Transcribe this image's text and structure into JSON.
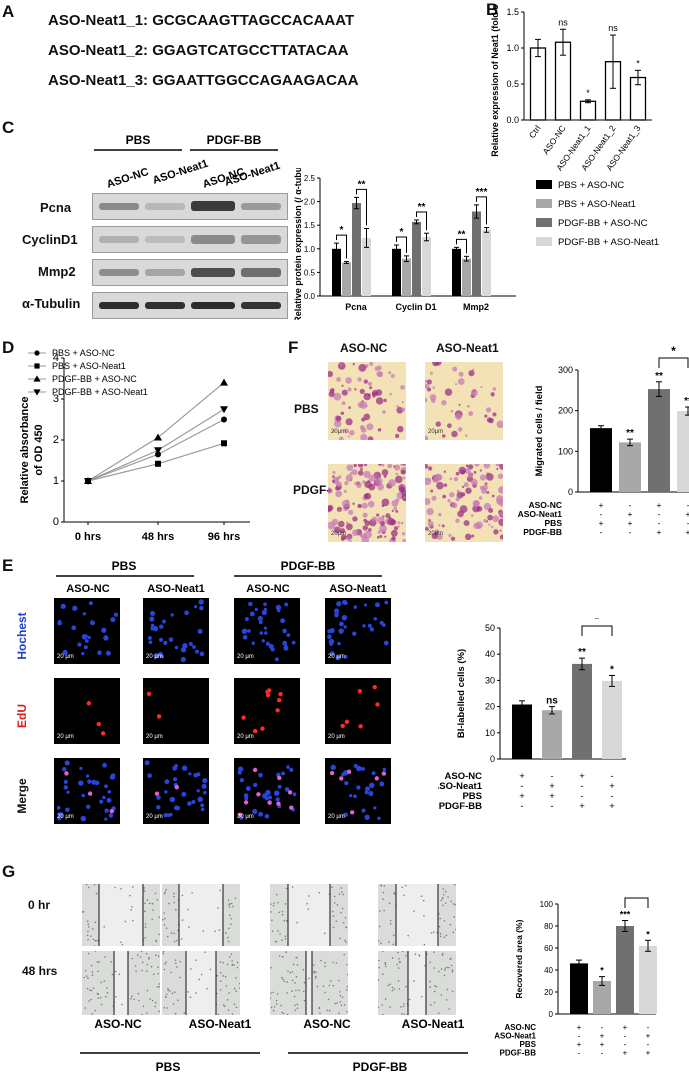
{
  "panels": {
    "a": "A",
    "b": "B",
    "c": "C",
    "d": "D",
    "e": "E",
    "f": "F",
    "g": "G"
  },
  "panelA": {
    "sequences": [
      "ASO-Neat1_1: GCGCAAGTTAGCCACAAAT",
      "ASO-Neat1_2: GGAGTCATGCCTTATACAA",
      "ASO-Neat1_3: GGAATTGGCCAGAAGACAA"
    ]
  },
  "panelC": {
    "group_labels": [
      "PBS",
      "PDGF-BB"
    ],
    "lane_labels": [
      "ASO-NC",
      "ASO-Neat1",
      "ASO-NC",
      "ASO-Neat1"
    ],
    "blot_labels": [
      "Pcna",
      "CyclinD1",
      "Mmp2",
      "α-Tubulin"
    ]
  },
  "panelE": {
    "group_labels": [
      "PBS",
      "PDGF-BB"
    ],
    "col_labels": [
      "ASO-NC",
      "ASO-Neat1",
      "ASO-NC",
      "ASO-Neat1"
    ],
    "row_labels": [
      "Hochest",
      "EdU",
      "Merge"
    ],
    "row_colors": [
      "#1f3fd0",
      "#e01818",
      "#111111"
    ],
    "scalebar": "20 μm"
  },
  "panelF": {
    "col_labels": [
      "ASO-NC",
      "ASO-Neat1"
    ],
    "row_labels": [
      "PBS",
      "PDGF-BB"
    ],
    "scalebar": "20μm"
  },
  "panelG": {
    "row_labels": [
      "0 hr",
      "48 hrs"
    ],
    "col_labels": [
      "ASO-NC",
      "ASO-Neat1",
      "ASO-NC",
      "ASO-Neat1"
    ],
    "group_labels": [
      "PBS",
      "PDGF-BB"
    ]
  },
  "chart_data": [
    {
      "id": "B",
      "type": "bar",
      "categories": [
        "Ctrl",
        "ASO-NC",
        "ASO-Neat1_1",
        "ASO-Neat1_2",
        "ASO-Neat1_3"
      ],
      "values": [
        1.0,
        1.08,
        0.26,
        0.81,
        0.59
      ],
      "errors": [
        0.12,
        0.18,
        0.02,
        0.37,
        0.1
      ],
      "significance": [
        "",
        "ns",
        "*",
        "ns",
        "*"
      ],
      "ylabel": "Relative expression of Neat1 (fold change)",
      "ylim": [
        0,
        1.5
      ],
      "yticks": [
        "0.0",
        "0.5",
        "1.0",
        "1.5"
      ],
      "colors": [
        "#ffffff"
      ]
    },
    {
      "id": "C",
      "type": "bar",
      "categories": [
        "Pcna",
        "Cyclin D1",
        "Mmp2"
      ],
      "series": [
        {
          "name": "PBS + ASO-NC",
          "values": [
            1.0,
            1.0,
            1.0
          ],
          "errors": [
            0.12,
            0.08,
            0.03
          ]
        },
        {
          "name": "PBS + ASO-Neat1",
          "values": [
            0.71,
            0.79,
            0.79
          ],
          "errors": [
            0.02,
            0.06,
            0.05
          ]
        },
        {
          "name": "PDGF-BB + ASO-NC",
          "values": [
            1.97,
            1.57,
            1.79
          ],
          "errors": [
            0.12,
            0.04,
            0.14
          ]
        },
        {
          "name": "PDGF-BB + ASO-Neat1",
          "values": [
            1.23,
            1.25,
            1.4
          ],
          "errors": [
            0.2,
            0.08,
            0.05
          ]
        }
      ],
      "significance": [
        [
          "*",
          "**"
        ],
        [
          "*",
          "**"
        ],
        [
          "**",
          "***"
        ]
      ],
      "colors": [
        "#000000",
        "#a8a8a8",
        "#707070",
        "#d8d8d8"
      ],
      "ylabel": "Relative protein expression (/ α-tubulin)",
      "ylim": [
        0,
        2.5
      ],
      "yticks": [
        "0.0",
        "0.5",
        "1.0",
        "1.5",
        "2.0",
        "2.5"
      ]
    },
    {
      "id": "D",
      "type": "line",
      "x": [
        "0 hrs",
        "48 hrs",
        "96 hrs"
      ],
      "series": [
        {
          "name": "PBS + ASO-NC",
          "values": [
            1.0,
            1.65,
            2.5
          ],
          "marker": "circle"
        },
        {
          "name": "PBS + ASO-Neat1",
          "values": [
            1.0,
            1.42,
            1.92
          ],
          "marker": "square"
        },
        {
          "name": "PDGF-BB + ASO-NC",
          "values": [
            1.0,
            2.06,
            3.4
          ],
          "marker": "triangle-up"
        },
        {
          "name": "PDGF-BB + ASO-Neat1",
          "values": [
            1.0,
            1.75,
            2.75
          ],
          "marker": "triangle-down"
        }
      ],
      "ylabel": "Relative absorbance of OD 450",
      "ylim": [
        0,
        4
      ],
      "yticks": [
        "0",
        "1",
        "2",
        "3",
        "4"
      ],
      "legend": "top-left"
    },
    {
      "id": "F",
      "type": "bar",
      "categories": [
        "1",
        "2",
        "3",
        "4"
      ],
      "values": [
        157,
        122,
        253,
        199
      ],
      "errors": [
        6,
        8,
        18,
        10
      ],
      "significance": [
        "",
        "**",
        "**",
        "**"
      ],
      "bracket": "*",
      "colors": [
        "#000000",
        "#a8a8a8",
        "#707070",
        "#d8d8d8"
      ],
      "ylabel": "Migrated cells / field",
      "ylim": [
        0,
        300
      ],
      "yticks": [
        "0",
        "100",
        "200",
        "300"
      ],
      "condition_rows": [
        {
          "label": "ASO-NC",
          "marks": [
            "+",
            "-",
            "+",
            "-"
          ]
        },
        {
          "label": "ASO-Neat1",
          "marks": [
            "-",
            "+",
            "-",
            "+"
          ]
        },
        {
          "label": "PBS",
          "marks": [
            "+",
            "+",
            "-",
            "-"
          ]
        },
        {
          "label": "PDGF-BB",
          "marks": [
            "-",
            "-",
            "+",
            "+"
          ]
        }
      ]
    },
    {
      "id": "E",
      "type": "bar",
      "categories": [
        "1",
        "2",
        "3",
        "4"
      ],
      "values": [
        20.8,
        18.6,
        36.3,
        29.8
      ],
      "errors": [
        1.4,
        1.4,
        2.2,
        2.1
      ],
      "significance": [
        "",
        "ns",
        "**",
        "*"
      ],
      "bracket": "*",
      "colors": [
        "#000000",
        "#a8a8a8",
        "#707070",
        "#d8d8d8"
      ],
      "ylabel": "BI-labelled cells (%)",
      "ylim": [
        0,
        50
      ],
      "yticks": [
        "0",
        "10",
        "20",
        "30",
        "40",
        "50"
      ],
      "condition_rows": [
        {
          "label": "ASO-NC",
          "marks": [
            "+",
            "-",
            "+",
            "-"
          ]
        },
        {
          "label": "ASO-Neat1",
          "marks": [
            "-",
            "+",
            "-",
            "+"
          ]
        },
        {
          "label": "PBS",
          "marks": [
            "+",
            "+",
            "-",
            "-"
          ]
        },
        {
          "label": "PDGF-BB",
          "marks": [
            "-",
            "-",
            "+",
            "+"
          ]
        }
      ]
    },
    {
      "id": "G",
      "type": "bar",
      "categories": [
        "1",
        "2",
        "3",
        "4"
      ],
      "values": [
        46,
        30,
        80,
        62
      ],
      "errors": [
        3,
        4,
        5,
        5
      ],
      "significance": [
        "",
        "*",
        "***",
        "*"
      ],
      "bracket": "**",
      "colors": [
        "#000000",
        "#a8a8a8",
        "#707070",
        "#d8d8d8"
      ],
      "ylabel": "Recovered area (%)",
      "ylim": [
        0,
        100
      ],
      "yticks": [
        "0",
        "20",
        "40",
        "60",
        "80",
        "100"
      ],
      "condition_rows": [
        {
          "label": "ASO-NC",
          "marks": [
            "+",
            "-",
            "+",
            "-"
          ]
        },
        {
          "label": "ASO-Neat1",
          "marks": [
            "-",
            "+",
            "-",
            "+"
          ]
        },
        {
          "label": "PBS",
          "marks": [
            "+",
            "+",
            "-",
            "-"
          ]
        },
        {
          "label": "PDGF-BB",
          "marks": [
            "-",
            "-",
            "+",
            "+"
          ]
        }
      ]
    }
  ]
}
